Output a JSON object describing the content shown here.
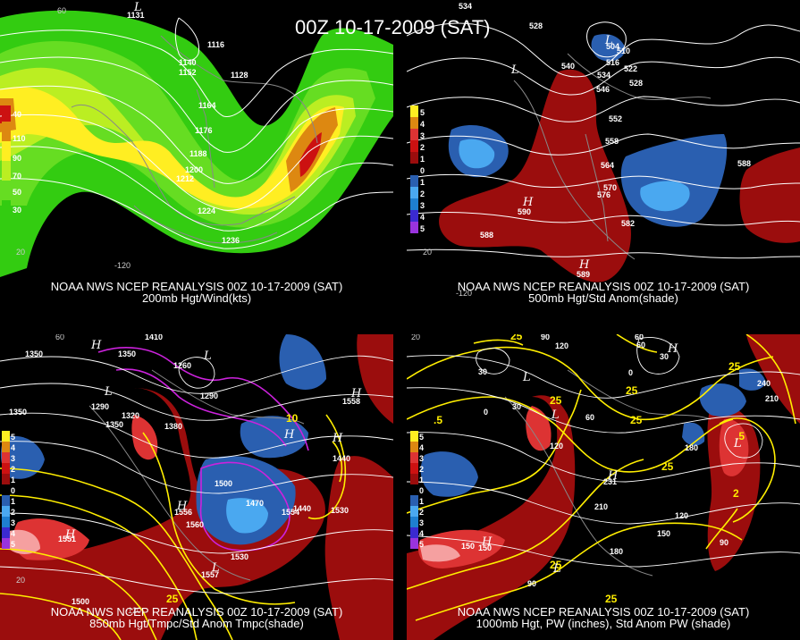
{
  "main_title": "00Z 10-17-2009 (SAT)",
  "panels": [
    {
      "caption_line1": "NOAA NWS NCEP REANALYSIS 00Z 10-17-2009 (SAT)",
      "caption_line2": "200mb Hgt/Wind(kts)",
      "colorbar": [
        "40",
        "110",
        "90",
        "70",
        "50",
        "30"
      ],
      "labels": [
        "1116",
        "1140",
        "1152",
        "1128",
        "1164",
        "1176",
        "1188",
        "1200",
        "1212",
        "1224",
        "1236",
        "20",
        "60",
        "-120",
        "1131"
      ],
      "pressure_centers": [
        "L"
      ]
    },
    {
      "caption_line1": "NOAA NWS NCEP REANALYSIS 00Z 10-17-2009 (SAT)",
      "caption_line2": "500mb Hgt/Std Anom(shade)",
      "colorbar": [
        "5",
        "4",
        "3",
        "2",
        "1",
        "0",
        "1",
        "2",
        "3",
        "4",
        "5"
      ],
      "labels": [
        "534",
        "528",
        "504",
        "510",
        "516",
        "522",
        "528",
        "540",
        "534",
        "546",
        "552",
        "558",
        "564",
        "570",
        "576",
        "582",
        "588",
        "588",
        "20",
        "-120",
        "590",
        "589"
      ],
      "pressure_centers": [
        "L",
        "L",
        "H",
        "H"
      ]
    },
    {
      "caption_line1": "NOAA NWS NCEP REANALYSIS 00Z 10-17-2009 (SAT)",
      "caption_line2": "850mb Hgt/Tmpc/Std Anom Tmpc(shade)",
      "colorbar": [
        "5",
        "4",
        "3",
        "2",
        "1",
        "0",
        "1",
        "2",
        "3",
        "4",
        "5"
      ],
      "labels": [
        "1410",
        "1350",
        "1350",
        "1260",
        "1290",
        "1350",
        "1320",
        "1380",
        "1350",
        "1290",
        "1500",
        "1470",
        "1440",
        "1530",
        "1560",
        "1530",
        "1440",
        "1500",
        "60",
        "20",
        "-120",
        "25",
        "10",
        "1551",
        "1556",
        "1557",
        "1554",
        "1558"
      ],
      "pressure_centers": [
        "H",
        "L",
        "L",
        "H",
        "H",
        "H",
        "H",
        "L",
        "H"
      ]
    },
    {
      "caption_line1": "NOAA NWS NCEP REANALYSIS 00Z 10-17-2009 (SAT)",
      "caption_line2": "1000mb Hgt, PW (inches), Std Anom PW (shade)",
      "colorbar": [
        "5",
        "4",
        "3",
        "2",
        "1",
        "0",
        "1",
        "2",
        "3",
        "4",
        "5"
      ],
      "labels": [
        "90",
        "120",
        "60",
        "30",
        "0",
        "30",
        "0",
        "60",
        "30",
        "240",
        "210",
        "180",
        "120",
        "150",
        "150",
        "180",
        "210",
        "120",
        "90",
        "90",
        "150",
        "231",
        "60",
        "20",
        "25",
        "25",
        "25",
        "25",
        "25",
        "25",
        "25",
        "25",
        ".5",
        ".5",
        "2"
      ],
      "pressure_centers": [
        "L",
        "L",
        "H",
        "H",
        "L",
        "H",
        "L"
      ]
    }
  ],
  "colors": {
    "background": "#000000",
    "wind_light_green": "#33cc11",
    "wind_green": "#66dd22",
    "wind_yellow_green": "#bbee22",
    "wind_yellow": "#ffee22",
    "wind_orange": "#dd8811",
    "wind_red": "#cc1111",
    "anom_red": "#9b0d0d",
    "anom_red_bright": "#dd3333",
    "anom_pink": "#f5a0a0",
    "anom_blue": "#2a5fb0",
    "anom_light_blue": "#4aa8f0",
    "contour_white": "#ffffff",
    "contour_yellow": "#ffee00",
    "contour_magenta": "#cc22dd",
    "coast_gray": "#888888"
  }
}
